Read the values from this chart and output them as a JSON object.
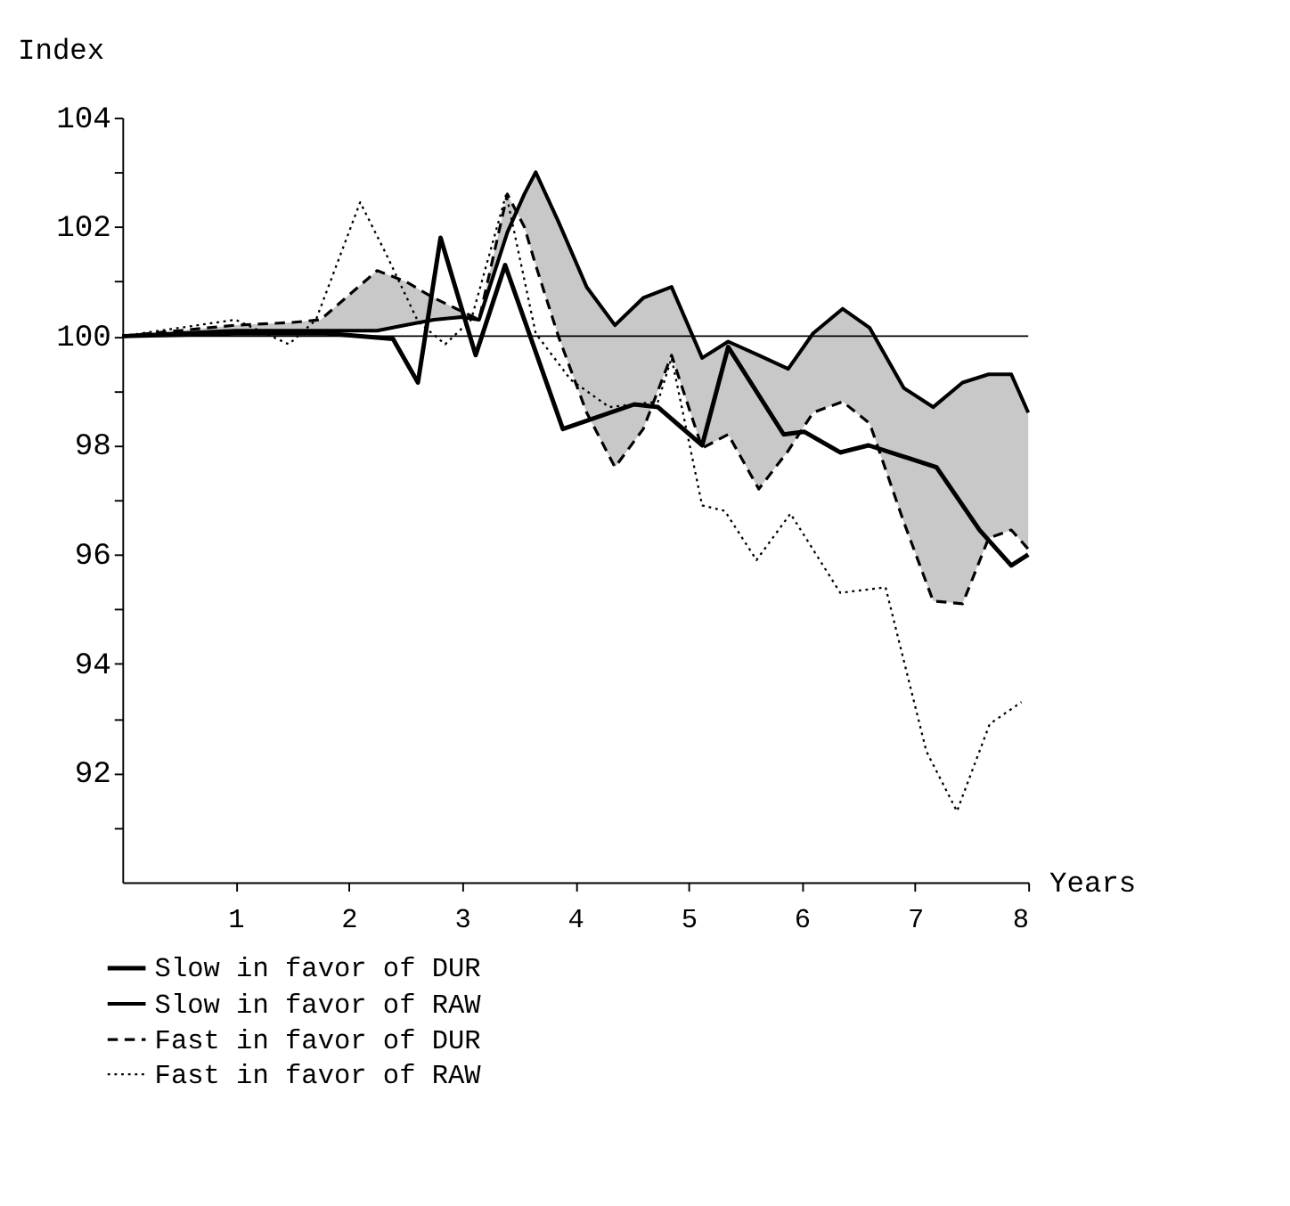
{
  "chart_data": {
    "type": "line",
    "xlabel": "Years",
    "ylabel": "Index",
    "x": [
      0,
      0.5,
      1,
      1.5,
      1.75,
      2.25,
      2.5,
      2.75,
      3,
      3.15,
      3.4,
      3.55,
      3.65,
      3.85,
      4.1,
      4.35,
      4.6,
      4.85,
      5.12,
      5.35,
      5.62,
      5.88,
      6.1,
      6.36,
      6.6,
      6.9,
      7.16,
      7.42,
      7.65,
      7.85,
      8.0
    ],
    "series": [
      {
        "name": "Slow in favor of DUR",
        "color": "#000000",
        "line_style": "solid",
        "x": [
          0,
          1,
          1.8,
          2.39,
          2.61,
          2.81,
          3.12,
          3.38,
          3.89,
          4.52,
          4.73,
          5.12,
          5.35,
          5.84,
          6.02,
          6.34,
          6.59,
          7.19,
          7.57,
          7.85,
          8.0
        ],
        "values": [
          100,
          100.05,
          100.05,
          99.95,
          99.15,
          101.8,
          99.65,
          101.3,
          98.3,
          98.75,
          98.7,
          98.0,
          99.8,
          98.2,
          98.25,
          97.87,
          98.0,
          97.6,
          96.45,
          95.8,
          96.0
        ]
      },
      {
        "name": "Slow in favor of RAW",
        "color": "#000000",
        "line_style": "solid",
        "values": [
          100,
          100.05,
          100.1,
          100.1,
          100.1,
          100.1,
          100.2,
          100.3,
          100.35,
          100.3,
          101.9,
          102.6,
          103.0,
          102.1,
          100.9,
          100.2,
          100.7,
          100.9,
          99.6,
          99.9,
          99.65,
          99.4,
          100.05,
          100.5,
          100.15,
          99.05,
          98.7,
          99.15,
          99.3,
          99.3,
          98.6
        ],
        "upper": [
          100,
          100.05,
          100.1,
          100.1,
          100.1,
          100.1,
          100.2,
          100.3,
          100.35,
          100.3,
          101.9,
          102.6,
          103.0,
          102.1,
          100.9,
          100.2,
          100.7,
          100.9,
          99.6,
          99.9,
          99.65,
          99.4,
          100.05,
          100.5,
          100.15,
          99.05,
          98.7,
          99.15,
          99.3,
          99.3,
          98.6
        ],
        "lower": [
          100,
          100.1,
          100.2,
          100.25,
          100.3,
          101.2,
          101.0,
          100.7,
          100.45,
          100.3,
          102.6,
          102.0,
          101.3,
          100.0,
          98.6,
          97.6,
          98.3,
          99.65,
          97.95,
          98.2,
          97.2,
          97.9,
          98.6,
          98.8,
          98.4,
          96.6,
          95.15,
          95.1,
          96.3,
          96.45,
          96.1
        ]
      },
      {
        "name": "Fast in favor of DUR",
        "color": "#000000",
        "line_style": "dashed",
        "values": [
          100,
          100.1,
          100.2,
          100.25,
          100.3,
          101.2,
          101.0,
          100.7,
          100.45,
          100.3,
          102.6,
          102.0,
          101.3,
          100.0,
          98.6,
          97.6,
          98.3,
          99.65,
          97.95,
          98.2,
          97.2,
          97.9,
          98.6,
          98.8,
          98.4,
          96.6,
          95.15,
          95.1,
          96.3,
          96.45,
          96.1
        ]
      },
      {
        "name": "Fast in favor of RAW",
        "color": "#000000",
        "line_style": "dotted",
        "x": [
          0,
          1,
          1.47,
          1.71,
          2.1,
          2.33,
          2.61,
          2.85,
          3.08,
          3.39,
          3.65,
          3.96,
          4.3,
          4.73,
          4.85,
          5.12,
          5.32,
          5.6,
          5.9,
          6.34,
          6.74,
          7.1,
          7.37,
          7.66,
          7.94
        ],
        "values": [
          100,
          100.3,
          99.85,
          100.3,
          102.45,
          101.5,
          100.27,
          99.85,
          100.3,
          102.6,
          100.05,
          99.2,
          98.7,
          98.8,
          99.6,
          96.9,
          96.8,
          95.9,
          96.75,
          95.3,
          95.4,
          92.4,
          91.3,
          92.9,
          93.3
        ]
      }
    ],
    "xlim": [
      0,
      8
    ],
    "xticks": [
      1,
      2,
      3,
      4,
      5,
      6,
      7,
      8
    ],
    "ylim": [
      90,
      104
    ],
    "yticks": [
      {
        "value": 91,
        "label": null
      },
      92,
      {
        "value": 93,
        "label": null
      },
      94,
      {
        "value": 95,
        "label": null
      },
      96,
      {
        "value": 97,
        "label": null
      },
      98,
      {
        "value": 99,
        "label": null
      },
      100,
      {
        "value": 101,
        "label": null
      },
      102,
      {
        "value": 103,
        "label": null
      },
      104
    ],
    "ref_lines": [
      {
        "axis": "y",
        "value": 100
      }
    ],
    "grid": false,
    "legend": "bottom",
    "marker": "none"
  }
}
